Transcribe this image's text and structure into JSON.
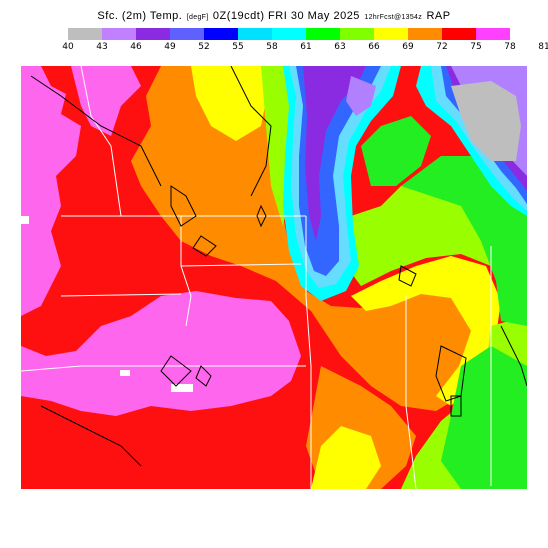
{
  "header": {
    "field": "Sfc. (2m) Temp.",
    "units": "[degF]",
    "valid": "0Z(19cdt) FRI 30 May 2025",
    "run": "12hrFcst@1354z",
    "model": "RAP"
  },
  "legend": {
    "labels": [
      "40",
      "43",
      "46",
      "49",
      "52",
      "55",
      "58",
      "61",
      "63",
      "66",
      "69",
      "72",
      "75",
      "78",
      "81"
    ],
    "colors": [
      "#bebebe",
      "#c080ff",
      "#8a2be2",
      "#6060ff",
      "#0000ff",
      "#00e0ff",
      "#00ffff",
      "#00ff00",
      "#80ff00",
      "#ffff00",
      "#ff8c00",
      "#ff0000",
      "#ff40ff"
    ]
  },
  "map": {
    "colors": {
      "magenta": "#ff66ee",
      "red": "#ff1010",
      "orange": "#ff8c00",
      "yellow": "#ffff00",
      "lime": "#99ff00",
      "green": "#22ee22",
      "cyan": "#00ffff",
      "skyblue": "#66ddff",
      "blue": "#3366ff",
      "purple": "#8a2be2",
      "lavender": "#b080ff",
      "gray": "#bebebe",
      "white": "#ffffff"
    }
  }
}
